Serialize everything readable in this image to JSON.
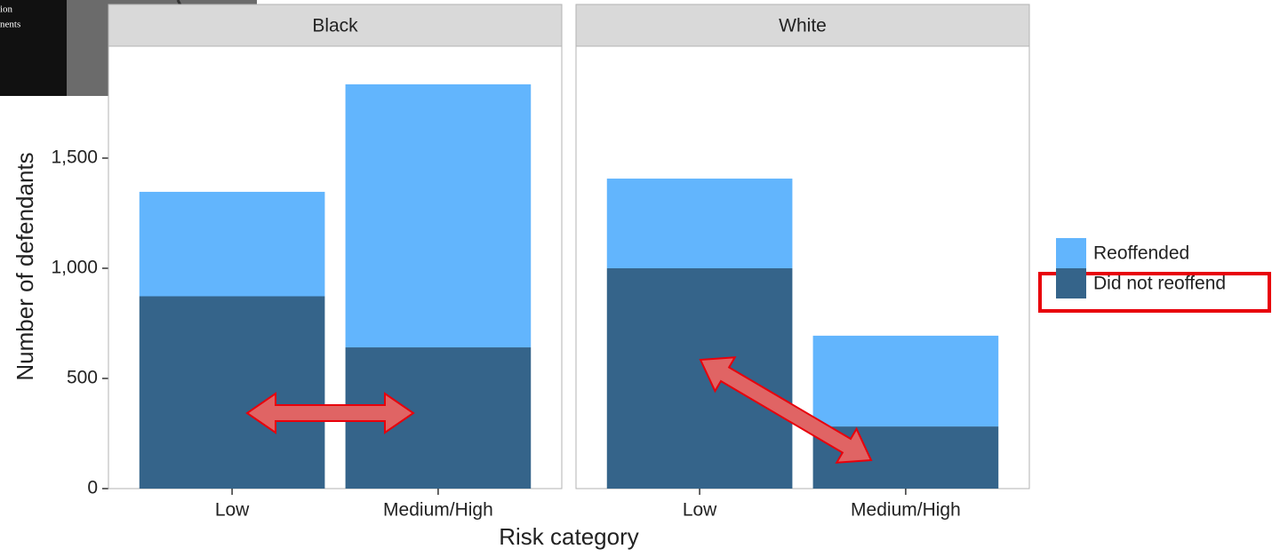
{
  "chart_data": {
    "type": "bar",
    "stacked": true,
    "facets": [
      "Black",
      "White"
    ],
    "categories": [
      "Low",
      "Medium/High"
    ],
    "series": [
      {
        "name": "Did not reoffend",
        "color": "#35648a",
        "values": [
          [
            873,
            641
          ],
          [
            1000,
            282
          ]
        ]
      },
      {
        "name": "Reoffended",
        "color": "#62b5fd",
        "values": [
          [
            474,
            1194
          ],
          [
            407,
            412
          ]
        ]
      }
    ],
    "ylim": [
      0,
      2008
    ],
    "yticks": [
      0,
      500,
      {
        "value": 1000,
        "label": "1,000"
      },
      {
        "value": 1500,
        "label": "1,500"
      }
    ],
    "xlabel": "Risk category",
    "ylabel": "Number of defendants",
    "legend": "right"
  },
  "photo": {
    "text": [
      "ion",
      "nents"
    ]
  }
}
